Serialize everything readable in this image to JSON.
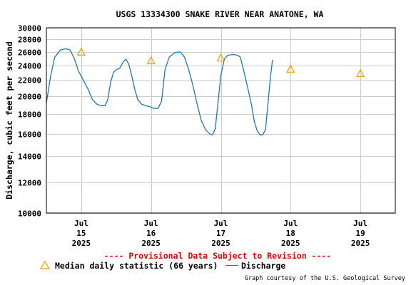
{
  "chart_data": {
    "type": "line",
    "title": "USGS 13334300 SNAKE RIVER NEAR ANATONE, WA",
    "ylabel": "Discharge, cubic feet per second",
    "xlabel": "",
    "y_scale": "log",
    "ylim": [
      10000,
      30000
    ],
    "y_ticks": [
      10000,
      12000,
      14000,
      16000,
      18000,
      20000,
      22000,
      24000,
      26000,
      28000,
      30000
    ],
    "x_ticks": [
      {
        "day": 15,
        "month": "Jul",
        "year": "2025"
      },
      {
        "day": 16,
        "month": "Jul",
        "year": "2025"
      },
      {
        "day": 17,
        "month": "Jul",
        "year": "2025"
      },
      {
        "day": 18,
        "month": "Jul",
        "year": "2025"
      },
      {
        "day": 19,
        "month": "Jul",
        "year": "2025"
      }
    ],
    "xlim": [
      14.5,
      19.5
    ],
    "grid": true,
    "series": [
      {
        "name": "Discharge",
        "color": "#1f77b4",
        "points": [
          [
            14.5,
            19200
          ],
          [
            14.56,
            22500
          ],
          [
            14.62,
            25200
          ],
          [
            14.7,
            26300
          ],
          [
            14.78,
            26500
          ],
          [
            14.84,
            26300
          ],
          [
            14.9,
            25000
          ],
          [
            14.96,
            23200
          ],
          [
            15.04,
            21800
          ],
          [
            15.1,
            20800
          ],
          [
            15.16,
            19600
          ],
          [
            15.22,
            19100
          ],
          [
            15.28,
            18900
          ],
          [
            15.34,
            18900
          ],
          [
            15.38,
            19600
          ],
          [
            15.42,
            21700
          ],
          [
            15.46,
            23000
          ],
          [
            15.5,
            23400
          ],
          [
            15.55,
            23600
          ],
          [
            15.6,
            24500
          ],
          [
            15.64,
            24900
          ],
          [
            15.68,
            24200
          ],
          [
            15.72,
            22700
          ],
          [
            15.77,
            20700
          ],
          [
            15.81,
            19600
          ],
          [
            15.86,
            19100
          ],
          [
            15.92,
            18900
          ],
          [
            15.98,
            18800
          ],
          [
            16.04,
            18600
          ],
          [
            16.1,
            18600
          ],
          [
            16.15,
            19400
          ],
          [
            16.2,
            23400
          ],
          [
            16.26,
            25200
          ],
          [
            16.34,
            25900
          ],
          [
            16.42,
            26000
          ],
          [
            16.48,
            25200
          ],
          [
            16.54,
            23400
          ],
          [
            16.6,
            21300
          ],
          [
            16.66,
            19100
          ],
          [
            16.72,
            17300
          ],
          [
            16.78,
            16400
          ],
          [
            16.84,
            16000
          ],
          [
            16.88,
            15900
          ],
          [
            16.92,
            16500
          ],
          [
            16.96,
            19300
          ],
          [
            17.0,
            22600
          ],
          [
            17.05,
            24900
          ],
          [
            17.1,
            25500
          ],
          [
            17.18,
            25600
          ],
          [
            17.24,
            25500
          ],
          [
            17.28,
            25200
          ],
          [
            17.32,
            23600
          ],
          [
            17.38,
            21200
          ],
          [
            17.44,
            19000
          ],
          [
            17.48,
            17200
          ],
          [
            17.52,
            16300
          ],
          [
            17.56,
            15900
          ],
          [
            17.6,
            15900
          ],
          [
            17.64,
            16400
          ],
          [
            17.67,
            18700
          ],
          [
            17.71,
            22300
          ],
          [
            17.74,
            24800
          ]
        ]
      },
      {
        "name": "Median daily statistic (66 years)",
        "color": "#e8a000",
        "marker": "triangle",
        "points": [
          [
            15,
            26000
          ],
          [
            16,
            24700
          ],
          [
            17,
            25100
          ],
          [
            18,
            23500
          ],
          [
            19,
            22900
          ]
        ]
      }
    ],
    "annotations": [
      "---- Provisional Data Subject to Revision ----"
    ],
    "legend": [
      {
        "label": "Median daily statistic (66 years)",
        "marker": "triangle",
        "color": "#e8a000"
      },
      {
        "label": "Discharge",
        "marker": "line",
        "color": "#1f77b4"
      }
    ],
    "legend_position": "bottom-left",
    "credit": "Graph courtesy of the U.S. Geological Survey",
    "provisional_color": "#e00000"
  }
}
